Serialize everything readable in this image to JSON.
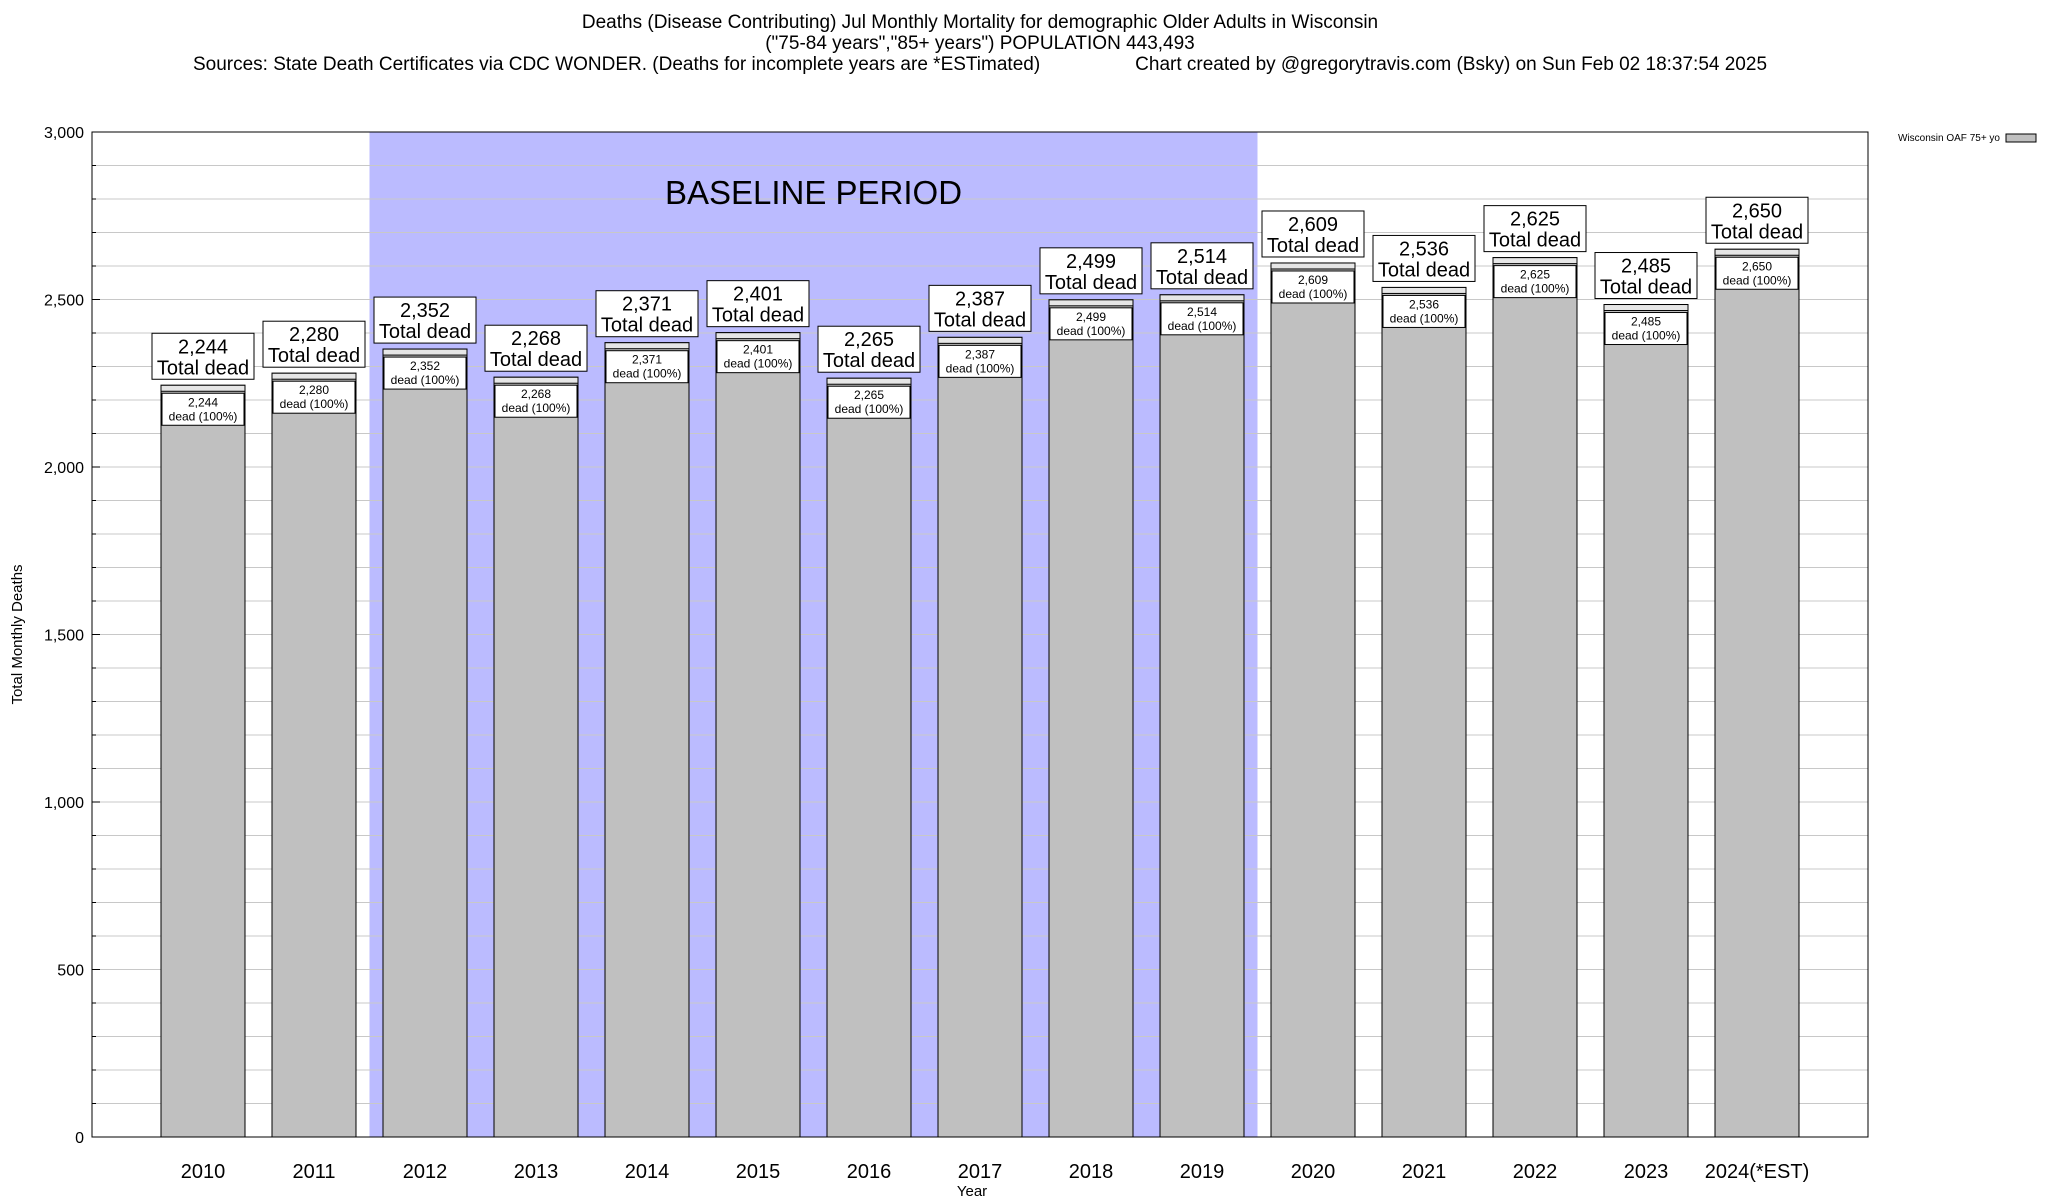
{
  "header": {
    "title_line1": "Deaths (Disease Contributing) Jul Monthly Mortality for demographic Older Adults in Wisconsin",
    "title_line2": "(\"75-84 years\",\"85+ years\") POPULATION 443,493",
    "sources": "Sources: State Death Certificates via CDC WONDER. (Deaths for incomplete years are *ESTimated)",
    "credit": "Chart created by @gregorytravis.com (Bsky) on Sun Feb 02 18:37:54 2025"
  },
  "colors": {
    "bar_fill": "#c0c0c0",
    "baseline_band": "#bbbbff",
    "grid": "#c8c8c8",
    "axis": "#000000"
  },
  "chart_data": {
    "type": "bar",
    "title": "Deaths (Disease Contributing) Jul Monthly Mortality for demographic Older Adults in Wisconsin",
    "xlabel": "Year",
    "ylabel": "Total Monthly Deaths",
    "ylim": [
      0,
      3000
    ],
    "yticks": [
      0,
      500,
      1000,
      1500,
      2000,
      2500,
      3000
    ],
    "ytick_labels": [
      "0",
      "500",
      "1,000",
      "1,500",
      "2,000",
      "2,500",
      "3,000"
    ],
    "minor_grid_step": 100,
    "grid": true,
    "legend_position": "top-right",
    "categories": [
      "2010",
      "2011",
      "2012",
      "2013",
      "2014",
      "2015",
      "2016",
      "2017",
      "2018",
      "2019",
      "2020",
      "2021",
      "2022",
      "2023",
      "2024(*EST)"
    ],
    "series": [
      {
        "name": "Wisconsin OAF 75+ yo",
        "values": [
          2244,
          2280,
          2352,
          2268,
          2371,
          2401,
          2265,
          2387,
          2499,
          2514,
          2609,
          2536,
          2625,
          2485,
          2650
        ]
      }
    ],
    "value_labels": [
      "2,244",
      "2,280",
      "2,352",
      "2,268",
      "2,371",
      "2,401",
      "2,265",
      "2,387",
      "2,499",
      "2,514",
      "2,609",
      "2,536",
      "2,625",
      "2,485",
      "2,650"
    ],
    "total_label": "Total dead",
    "inner_label": "dead (100%)",
    "baseline": {
      "label": "BASELINE PERIOD",
      "start_category": "2012",
      "end_category": "2019"
    }
  }
}
